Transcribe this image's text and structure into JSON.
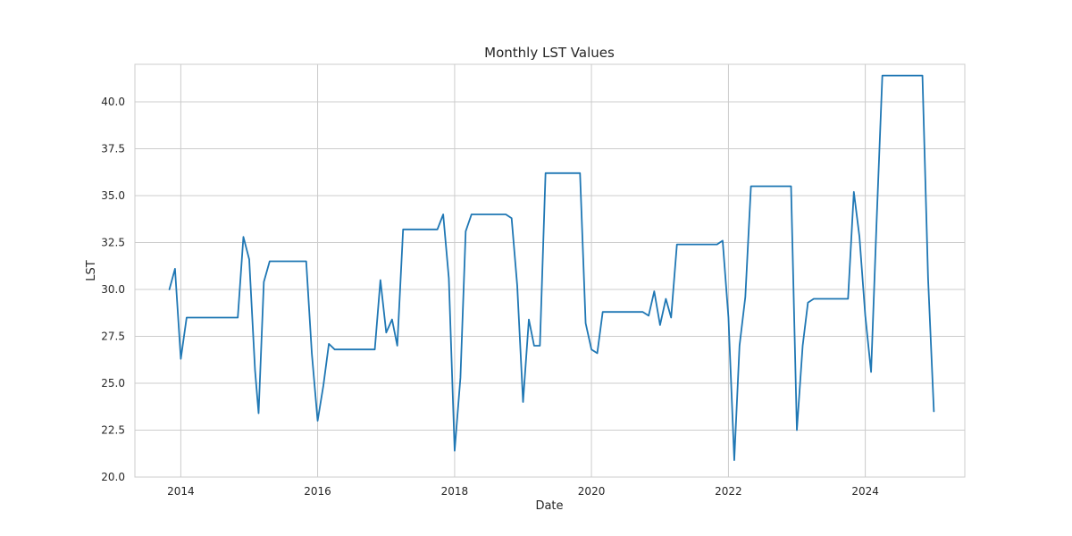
{
  "chart_data": {
    "type": "line",
    "title": "Monthly LST Values",
    "xlabel": "Date",
    "ylabel": "LST",
    "grid": true,
    "xlim": [
      "2013-05-01",
      "2025-06-15"
    ],
    "ylim": [
      20.0,
      42.0
    ],
    "x_ticks": [
      "2014",
      "2016",
      "2018",
      "2020",
      "2022",
      "2024"
    ],
    "y_ticks": [
      "20.0",
      "22.5",
      "25.0",
      "27.5",
      "30.0",
      "32.5",
      "35.0",
      "37.5",
      "40.0"
    ],
    "series": [
      {
        "name": "",
        "color": "#1f77b4",
        "points": [
          [
            "2013-11-01",
            30.0
          ],
          [
            "2013-12-01",
            31.1
          ],
          [
            "2014-01-01",
            26.3
          ],
          [
            "2014-02-01",
            28.5
          ],
          [
            "2014-11-01",
            28.5
          ],
          [
            "2014-12-01",
            32.8
          ],
          [
            "2015-01-01",
            31.6
          ],
          [
            "2015-02-01",
            25.7
          ],
          [
            "2015-02-20",
            23.4
          ],
          [
            "2015-03-20",
            30.4
          ],
          [
            "2015-04-20",
            31.5
          ],
          [
            "2015-11-01",
            31.5
          ],
          [
            "2015-12-01",
            26.6
          ],
          [
            "2016-01-01",
            23.0
          ],
          [
            "2016-02-01",
            24.9
          ],
          [
            "2016-03-01",
            27.1
          ],
          [
            "2016-04-01",
            26.8
          ],
          [
            "2016-11-01",
            26.8
          ],
          [
            "2016-12-01",
            30.5
          ],
          [
            "2017-01-01",
            27.7
          ],
          [
            "2017-02-01",
            28.4
          ],
          [
            "2017-03-01",
            27.0
          ],
          [
            "2017-04-01",
            33.2
          ],
          [
            "2017-10-01",
            33.2
          ],
          [
            "2017-11-01",
            34.0
          ],
          [
            "2017-12-01",
            30.6
          ],
          [
            "2018-01-01",
            21.4
          ],
          [
            "2018-02-01",
            25.3
          ],
          [
            "2018-03-01",
            33.1
          ],
          [
            "2018-04-01",
            34.0
          ],
          [
            "2018-10-01",
            34.0
          ],
          [
            "2018-11-01",
            33.8
          ],
          [
            "2018-12-01",
            30.2
          ],
          [
            "2019-01-01",
            24.0
          ],
          [
            "2019-02-01",
            28.4
          ],
          [
            "2019-03-01",
            27.0
          ],
          [
            "2019-04-01",
            27.0
          ],
          [
            "2019-05-01",
            36.2
          ],
          [
            "2019-11-01",
            36.2
          ],
          [
            "2019-12-01",
            28.2
          ],
          [
            "2020-01-01",
            26.8
          ],
          [
            "2020-02-01",
            26.6
          ],
          [
            "2020-03-01",
            28.8
          ],
          [
            "2020-10-01",
            28.8
          ],
          [
            "2020-11-01",
            28.6
          ],
          [
            "2020-12-01",
            29.9
          ],
          [
            "2021-01-01",
            28.1
          ],
          [
            "2021-02-01",
            29.5
          ],
          [
            "2021-03-01",
            28.5
          ],
          [
            "2021-04-01",
            32.4
          ],
          [
            "2021-11-01",
            32.4
          ],
          [
            "2021-12-01",
            32.6
          ],
          [
            "2022-01-01",
            28.5
          ],
          [
            "2022-02-01",
            20.9
          ],
          [
            "2022-03-01",
            27.0
          ],
          [
            "2022-04-01",
            29.6
          ],
          [
            "2022-05-01",
            35.5
          ],
          [
            "2022-12-01",
            35.5
          ],
          [
            "2023-01-01",
            22.5
          ],
          [
            "2023-02-01",
            27.0
          ],
          [
            "2023-03-01",
            29.3
          ],
          [
            "2023-04-01",
            29.5
          ],
          [
            "2023-10-01",
            29.5
          ],
          [
            "2023-11-01",
            35.2
          ],
          [
            "2023-12-01",
            32.8
          ],
          [
            "2024-01-01",
            28.6
          ],
          [
            "2024-02-01",
            25.6
          ],
          [
            "2024-03-01",
            33.5
          ],
          [
            "2024-04-01",
            41.4
          ],
          [
            "2024-11-01",
            41.4
          ],
          [
            "2024-12-01",
            30.6
          ],
          [
            "2025-01-01",
            23.5
          ]
        ]
      }
    ]
  }
}
